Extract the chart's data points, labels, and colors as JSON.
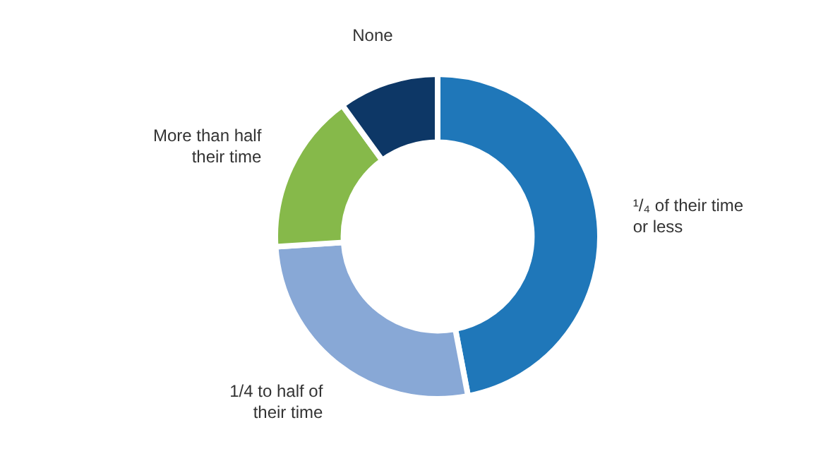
{
  "chart_data": {
    "type": "donut",
    "categories": [
      "¹/₄ of their time or less",
      "1/4 to half of their time",
      "More than half their time",
      "None"
    ],
    "values": [
      47,
      27,
      16,
      10
    ],
    "colors": [
      "#1f77b9",
      "#88a8d6",
      "#86b94a",
      "#0d3766"
    ],
    "legend": false
  }
}
